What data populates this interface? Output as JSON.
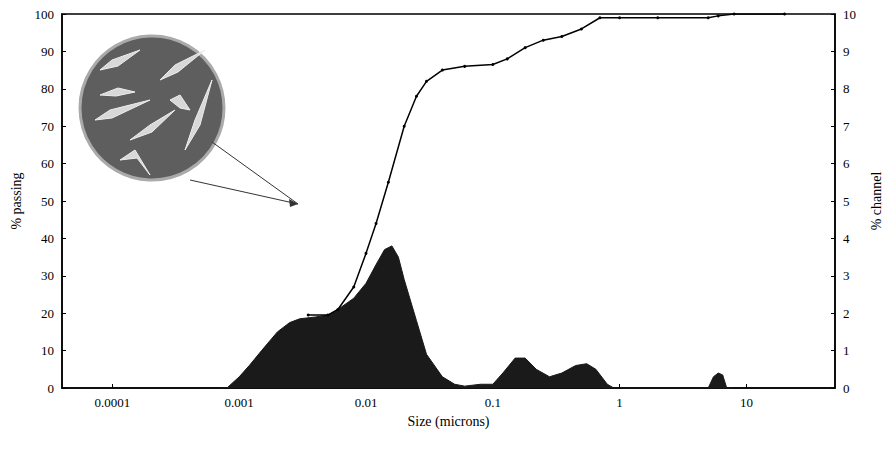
{
  "chart_data": {
    "type": "line",
    "xlabel": "Size (microns)",
    "ylabel": "% passing",
    "y2label": "% channel",
    "log": "x",
    "grid": false,
    "xlim": [
      4e-05,
      50
    ],
    "xticks": [
      0.0001,
      0.001,
      0.01,
      0.1,
      1,
      10
    ],
    "ylim": [
      0,
      100
    ],
    "yticks": [
      0,
      10,
      20,
      30,
      40,
      50,
      60,
      70,
      80,
      90,
      100
    ],
    "y2lim": [
      0,
      10
    ],
    "y2ticks": [
      0,
      1,
      2,
      3,
      4,
      5,
      6,
      7,
      8,
      9,
      10
    ],
    "series": [
      {
        "type": "area",
        "axis": "y2",
        "color": "#1a1a1a",
        "x": [
          0.0007,
          0.0008,
          0.001,
          0.0012,
          0.0015,
          0.002,
          0.0025,
          0.003,
          0.004,
          0.005,
          0.006,
          0.008,
          0.01,
          0.012,
          0.014,
          0.016,
          0.018,
          0.02,
          0.025,
          0.03,
          0.04,
          0.05,
          0.06,
          0.08,
          0.1,
          0.12,
          0.15,
          0.18,
          0.22,
          0.28,
          0.35,
          0.45,
          0.55,
          0.65,
          0.8,
          0.9,
          1,
          4.5,
          5,
          5.5,
          6,
          6.5,
          7,
          8
        ],
        "values": [
          0,
          0,
          0.3,
          0.6,
          1.0,
          1.5,
          1.75,
          1.85,
          1.9,
          1.95,
          2.1,
          2.4,
          2.8,
          3.3,
          3.7,
          3.8,
          3.5,
          2.9,
          1.8,
          0.9,
          0.3,
          0.1,
          0.05,
          0.1,
          0.1,
          0.4,
          0.8,
          0.8,
          0.5,
          0.3,
          0.4,
          0.6,
          0.65,
          0.5,
          0.1,
          0,
          0,
          0,
          0,
          0.3,
          0.4,
          0.35,
          0,
          0
        ]
      },
      {
        "type": "line",
        "axis": "y",
        "color": "#000000",
        "marker": "circle",
        "x": [
          0.0035,
          0.005,
          0.006,
          0.008,
          0.01,
          0.012,
          0.015,
          0.02,
          0.025,
          0.03,
          0.04,
          0.06,
          0.1,
          0.13,
          0.18,
          0.25,
          0.35,
          0.5,
          0.7,
          1,
          2,
          5,
          6,
          8,
          20
        ],
        "values": [
          19.5,
          19.5,
          21,
          27,
          36,
          44,
          55,
          70,
          78,
          82,
          85,
          86,
          86.5,
          88,
          91,
          93,
          94,
          96,
          99,
          99,
          99,
          99,
          99.5,
          100,
          100
        ]
      }
    ]
  }
}
